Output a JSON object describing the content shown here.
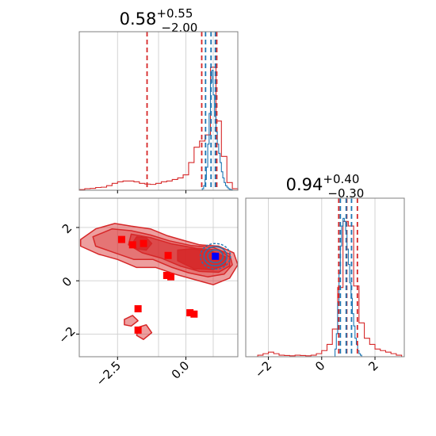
{
  "chart_data": [
    {
      "type": "histogram",
      "panel": "marginal-parameter-1",
      "title": {
        "main": "0.58",
        "sup": "+0.55",
        "sub": "−2.00"
      },
      "xlim": [
        -3.9,
        1.9
      ],
      "ylim": [
        0,
        1.0
      ],
      "grid": true,
      "series": [
        {
          "color": "#d62728",
          "bin_edges": [
            -3.9,
            -3.7,
            -3.5,
            -3.3,
            -3.1,
            -2.9,
            -2.7,
            -2.5,
            -2.3,
            -2.1,
            -1.9,
            -1.7,
            -1.5,
            -1.3,
            -1.1,
            -0.9,
            -0.7,
            -0.5,
            -0.3,
            -0.1,
            0.1,
            0.3,
            0.5,
            0.7,
            0.9,
            1.1,
            1.3,
            1.5,
            1.7,
            1.9
          ],
          "counts": [
            0.004,
            0.01,
            0.012,
            0.018,
            0.02,
            0.03,
            0.045,
            0.055,
            0.06,
            0.06,
            0.055,
            0.045,
            0.04,
            0.038,
            0.045,
            0.055,
            0.06,
            0.07,
            0.08,
            0.1,
            0.18,
            0.28,
            0.32,
            0.36,
            0.8,
            0.45,
            0.22,
            0.05,
            0.01
          ]
        },
        {
          "color": "#1f77b4",
          "bin_edges": [
            0.6,
            0.65,
            0.7,
            0.75,
            0.8,
            0.85,
            0.9,
            0.95,
            1.0,
            1.05,
            1.1,
            1.15,
            1.2,
            1.25,
            1.3,
            1.35,
            1.4,
            1.45,
            1.5,
            1.55,
            1.6,
            1.65,
            1.7
          ],
          "counts": [
            0.01,
            0.03,
            0.07,
            0.15,
            0.3,
            0.5,
            0.7,
            0.78,
            0.62,
            0.48,
            0.38,
            0.3,
            0.24,
            0.18,
            0.12,
            0.08,
            0.05,
            0.03,
            0.02,
            0.01,
            0.006,
            0.003
          ]
        }
      ],
      "quantile_lines": [
        {
          "x": -1.42,
          "color": "#d62728"
        },
        {
          "x": 0.58,
          "color": "#d62728"
        },
        {
          "x": 1.13,
          "color": "#d62728"
        },
        {
          "x": 0.72,
          "color": "#1f77b4"
        },
        {
          "x": 0.92,
          "color": "#1f77b4"
        },
        {
          "x": 1.08,
          "color": "#1f77b4"
        }
      ]
    },
    {
      "type": "contour",
      "panel": "joint-parameter-1-vs-parameter-2",
      "xlim": [
        -3.9,
        1.9
      ],
      "ylim": [
        -2.85,
        3.1
      ],
      "xticks": [
        -2.5,
        0.0
      ],
      "xtick_labels": [
        "−2.5",
        "0.0"
      ],
      "yticks": [
        -2,
        0,
        2
      ],
      "ytick_labels": [
        "−2",
        "0",
        "2"
      ],
      "grid": true,
      "red_contour_levels": [
        [
          [
            -3.85,
            1.55
          ],
          [
            -3.3,
            1.95
          ],
          [
            -2.6,
            2.15
          ],
          [
            -2.0,
            2.05
          ],
          [
            -1.3,
            1.95
          ],
          [
            -0.7,
            1.7
          ],
          [
            -0.2,
            1.55
          ],
          [
            0.5,
            1.35
          ],
          [
            1.2,
            1.3
          ],
          [
            1.75,
            1.05
          ],
          [
            1.9,
            0.6
          ],
          [
            1.6,
            0.1
          ],
          [
            1.0,
            -0.15
          ],
          [
            0.3,
            0.05
          ],
          [
            -0.4,
            0.25
          ],
          [
            -1.1,
            0.5
          ],
          [
            -1.8,
            0.5
          ],
          [
            -2.5,
            0.8
          ],
          [
            -3.2,
            1.0
          ],
          [
            -3.85,
            1.3
          ]
        ],
        [
          [
            -3.4,
            1.65
          ],
          [
            -2.7,
            1.95
          ],
          [
            -2.0,
            1.88
          ],
          [
            -1.3,
            1.72
          ],
          [
            -0.6,
            1.5
          ],
          [
            0.2,
            1.32
          ],
          [
            1.0,
            1.25
          ],
          [
            1.6,
            1.0
          ],
          [
            1.7,
            0.6
          ],
          [
            1.4,
            0.25
          ],
          [
            0.8,
            0.15
          ],
          [
            0.1,
            0.3
          ],
          [
            -0.5,
            0.5
          ],
          [
            -1.2,
            0.8
          ],
          [
            -1.9,
            0.8
          ],
          [
            -2.6,
            1.05
          ],
          [
            -3.3,
            1.3
          ]
        ],
        [
          [
            -2.0,
            1.75
          ],
          [
            -1.3,
            1.62
          ],
          [
            -0.5,
            1.38
          ],
          [
            0.4,
            1.22
          ],
          [
            1.2,
            1.15
          ],
          [
            1.6,
            0.9
          ],
          [
            1.6,
            0.55
          ],
          [
            1.2,
            0.32
          ],
          [
            0.5,
            0.35
          ],
          [
            -0.2,
            0.55
          ],
          [
            -0.9,
            0.85
          ],
          [
            -1.6,
            1.05
          ],
          [
            -2.1,
            1.35
          ]
        ],
        [
          [
            -1.8,
            1.65
          ],
          [
            -1.45,
            1.62
          ],
          [
            -1.25,
            1.4
          ],
          [
            -1.45,
            1.15
          ],
          [
            -1.8,
            1.2
          ],
          [
            -1.95,
            1.42
          ]
        ],
        [
          [
            -0.3,
            1.15
          ],
          [
            0.2,
            1.2
          ],
          [
            0.9,
            1.12
          ],
          [
            1.45,
            0.9
          ],
          [
            1.45,
            0.6
          ],
          [
            1.0,
            0.42
          ],
          [
            0.3,
            0.45
          ],
          [
            -0.3,
            0.75
          ]
        ],
        [
          [
            -2.25,
            -1.45
          ],
          [
            -1.95,
            -1.3
          ],
          [
            -1.75,
            -1.5
          ],
          [
            -2.0,
            -1.7
          ],
          [
            -2.25,
            -1.65
          ]
        ],
        [
          [
            -1.75,
            -1.75
          ],
          [
            -1.45,
            -1.65
          ],
          [
            -1.25,
            -1.95
          ],
          [
            -1.55,
            -2.2
          ],
          [
            -1.8,
            -2.05
          ]
        ]
      ],
      "blue_contour_center": [
        1.08,
        0.92
      ],
      "blue_contour_radii": [
        [
          0.55,
          0.48
        ],
        [
          0.42,
          0.36
        ],
        [
          0.28,
          0.24
        ]
      ],
      "red_square_markers": [
        [
          -2.35,
          1.55
        ],
        [
          -1.55,
          1.4
        ],
        [
          -1.95,
          1.35
        ],
        [
          -0.65,
          0.95
        ],
        [
          -0.7,
          0.2
        ],
        [
          -0.55,
          0.15
        ],
        [
          -1.75,
          -1.05
        ],
        [
          -1.75,
          -1.85
        ],
        [
          0.15,
          -1.2
        ],
        [
          0.3,
          -1.25
        ]
      ],
      "blue_square_marker": [
        1.08,
        0.92
      ]
    },
    {
      "type": "histogram",
      "panel": "marginal-parameter-2",
      "title": {
        "main": "0.94",
        "sup": "+0.40",
        "sub": "−0.30"
      },
      "xlim": [
        -2.85,
        3.1
      ],
      "ylim": [
        0,
        1.0
      ],
      "xticks": [
        -2,
        0,
        2
      ],
      "xtick_labels": [
        "−2",
        "0",
        "2"
      ],
      "grid": true,
      "series": [
        {
          "color": "#d62728",
          "bin_edges": [
            -2.4,
            -2.2,
            -2.0,
            -1.8,
            -1.6,
            -1.4,
            -1.2,
            -1.0,
            -0.8,
            -0.6,
            -0.4,
            -0.2,
            0.0,
            0.2,
            0.4,
            0.6,
            0.8,
            1.0,
            1.2,
            1.4,
            1.6,
            1.8,
            2.0,
            2.2,
            2.4,
            2.6,
            2.8,
            3.0
          ],
          "counts": [
            0.01,
            0.02,
            0.03,
            0.02,
            0.01,
            0.008,
            0.006,
            0.01,
            0.008,
            0.006,
            0.01,
            0.02,
            0.04,
            0.08,
            0.18,
            0.45,
            0.88,
            0.85,
            0.46,
            0.22,
            0.12,
            0.08,
            0.05,
            0.04,
            0.03,
            0.02,
            0.01
          ]
        },
        {
          "color": "#1f77b4",
          "bin_edges": [
            0.5,
            0.55,
            0.6,
            0.65,
            0.7,
            0.75,
            0.8,
            0.85,
            0.9,
            0.95,
            1.0,
            1.05,
            1.1,
            1.15,
            1.2,
            1.25,
            1.3,
            1.35,
            1.4,
            1.45,
            1.5
          ],
          "counts": [
            0.05,
            0.15,
            0.35,
            0.55,
            0.72,
            0.85,
            0.9,
            0.88,
            0.82,
            0.7,
            0.6,
            0.48,
            0.38,
            0.28,
            0.2,
            0.12,
            0.08,
            0.04,
            0.02,
            0.01
          ]
        }
      ],
      "quantile_lines": [
        {
          "x": 0.64,
          "color": "#d62728"
        },
        {
          "x": 0.94,
          "color": "#d62728"
        },
        {
          "x": 1.34,
          "color": "#d62728"
        },
        {
          "x": 0.7,
          "color": "#1f77b4"
        },
        {
          "x": 0.92,
          "color": "#1f77b4"
        },
        {
          "x": 1.12,
          "color": "#1f77b4"
        }
      ]
    }
  ]
}
